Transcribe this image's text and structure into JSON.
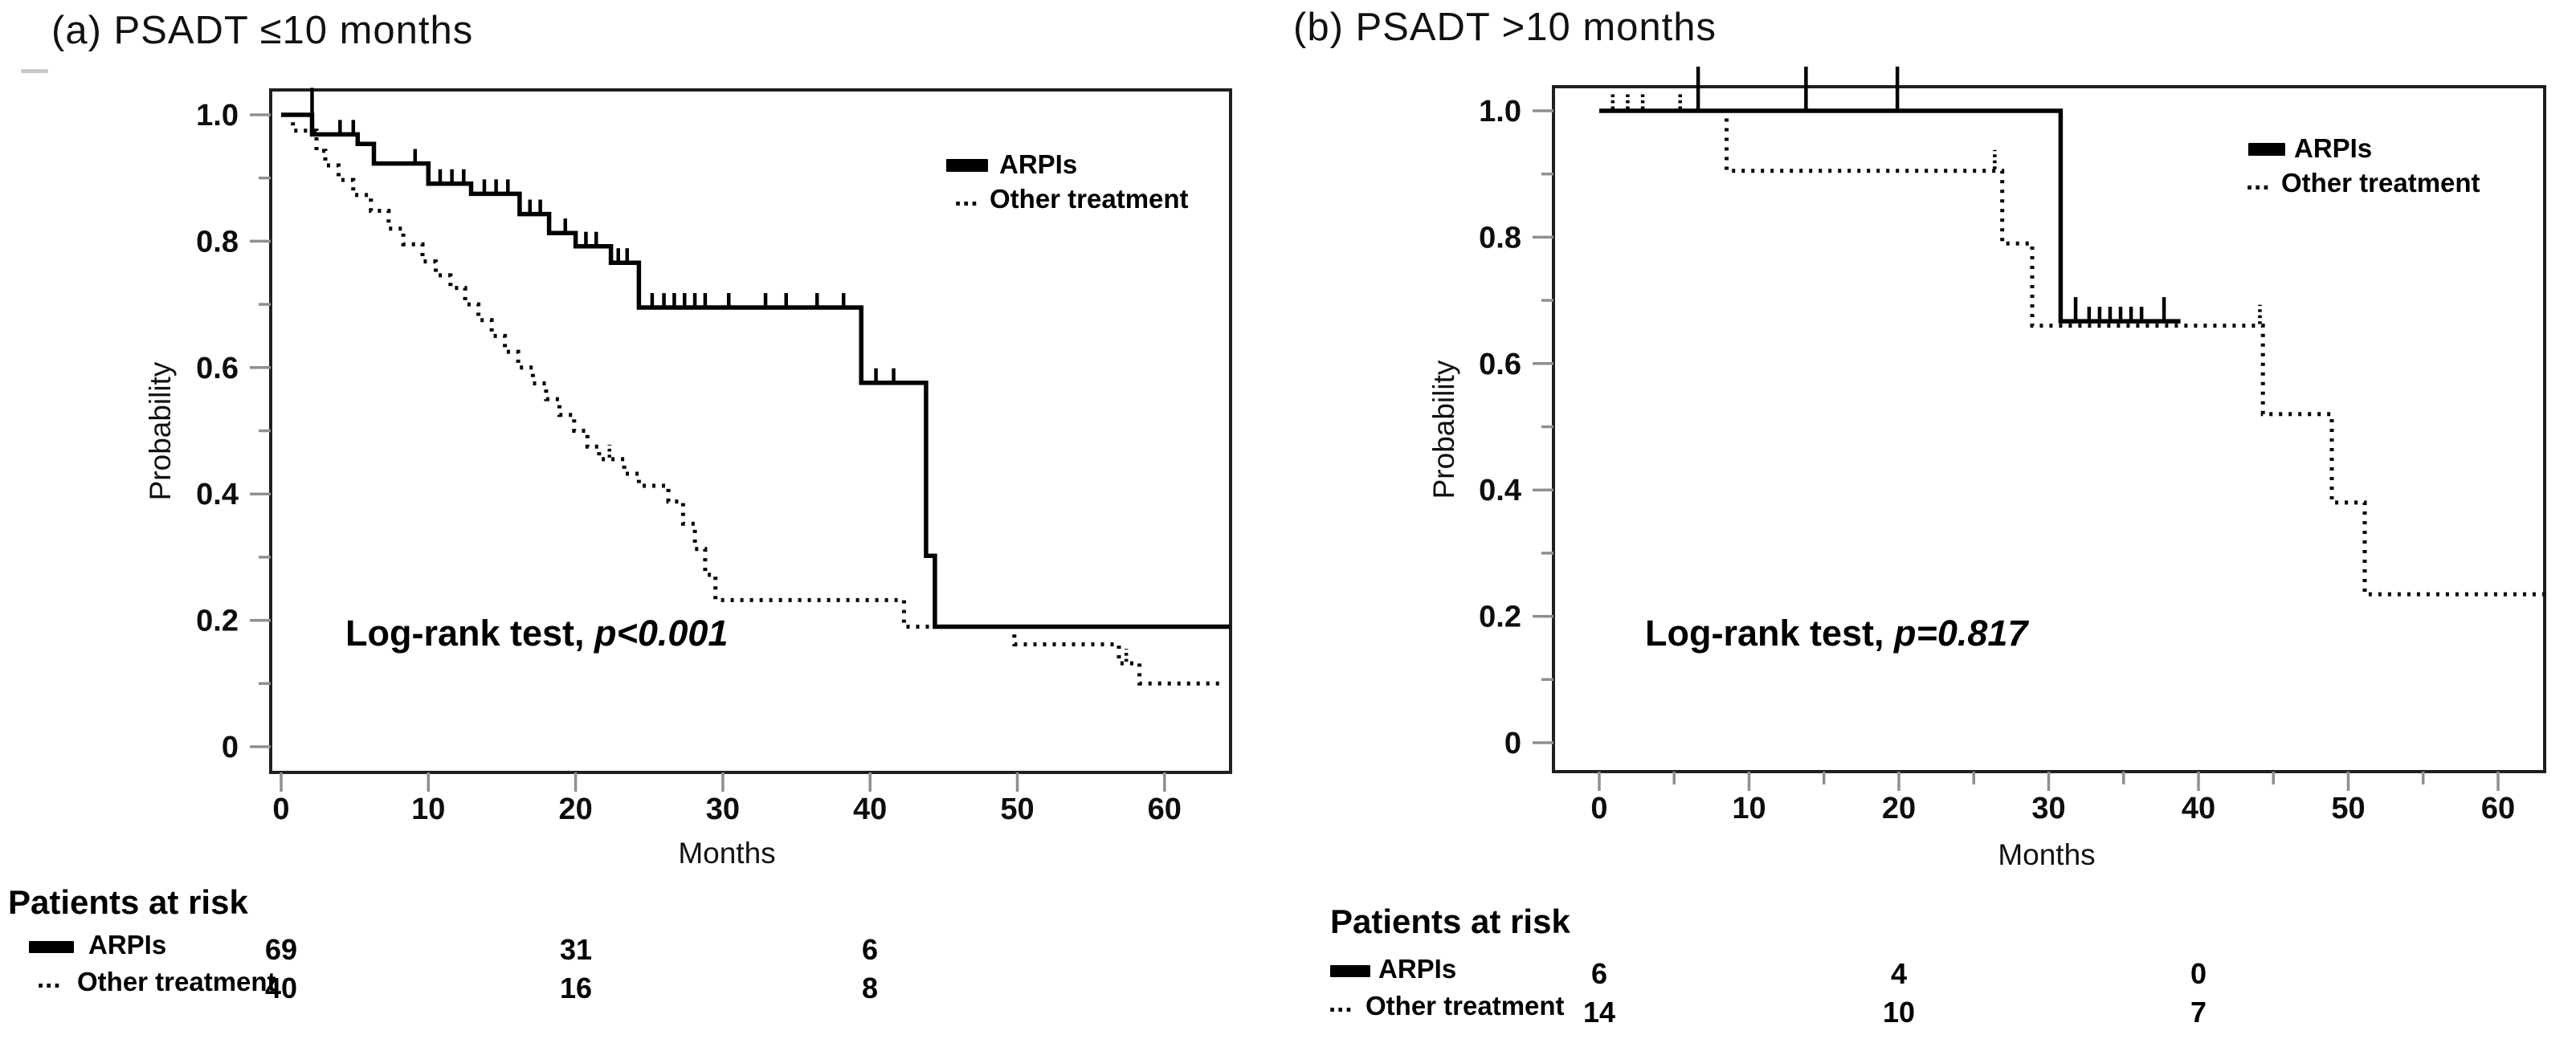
{
  "figure": {
    "panels": [
      {
        "id": "a",
        "title": "(a) PSADT ≤10 months",
        "ylabel": "Probability",
        "xlabel": "Months",
        "logrank_prefix": "Log-rank test, ",
        "logrank_p": "p<0.001",
        "legend": {
          "arpis": "ARPIs",
          "dots_prefix": "...",
          "other": "Other treatment"
        },
        "at_risk": {
          "title": "Patients at risk",
          "rows": [
            {
              "label": "ARPIs",
              "values": [
                "69",
                "31",
                "6"
              ]
            },
            {
              "label": "Other treatment",
              "values": [
                "40",
                "16",
                "8"
              ]
            }
          ]
        }
      },
      {
        "id": "b",
        "title": "(b) PSADT >10 months",
        "ylabel": "Probability",
        "xlabel": "Months",
        "logrank_prefix": "Log-rank test, ",
        "logrank_p": "p=0.817",
        "legend": {
          "arpis": "ARPIs",
          "dots_prefix": "...",
          "other": "Other treatment"
        },
        "at_risk": {
          "title": "Patients at risk",
          "rows": [
            {
              "label": "ARPIs",
              "values": [
                "6",
                "4",
                "0"
              ]
            },
            {
              "label": "Other treatment",
              "values": [
                "14",
                "10",
                "7"
              ]
            }
          ]
        }
      }
    ]
  },
  "chart_data": [
    {
      "type": "line",
      "panel": "a",
      "subtype": "kaplan-meier-step",
      "title": "(a) PSADT ≤10 months",
      "xlabel": "Months",
      "ylabel": "Probability",
      "xlim": [
        0,
        65
      ],
      "ylim": [
        0,
        1.05
      ],
      "xticks": [
        0,
        10,
        20,
        30,
        40,
        50,
        60
      ],
      "yticks": [
        1.0,
        0.8,
        0.6,
        0.4,
        0.2,
        0
      ],
      "grid": false,
      "legend_position": "upper-right-inside",
      "annotation": "Log-rank test, p<0.001",
      "series": [
        {
          "name": "Other treatment",
          "style": "dotted",
          "steps": [
            [
              0,
              1.0
            ],
            [
              0.8,
              0.975
            ],
            [
              2.4,
              0.943
            ],
            [
              3,
              0.92
            ],
            [
              3.9,
              0.897
            ],
            [
              4.9,
              0.873
            ],
            [
              6.1,
              0.848
            ],
            [
              7.3,
              0.82
            ],
            [
              8.3,
              0.795
            ],
            [
              9.6,
              0.768
            ],
            [
              10.5,
              0.746
            ],
            [
              11.5,
              0.726
            ],
            [
              12.5,
              0.7
            ],
            [
              13.4,
              0.675
            ],
            [
              14.3,
              0.65
            ],
            [
              15.2,
              0.625
            ],
            [
              16.1,
              0.6
            ],
            [
              17.1,
              0.575
            ],
            [
              18,
              0.55
            ],
            [
              18.9,
              0.525
            ],
            [
              19.9,
              0.5
            ],
            [
              20.8,
              0.475
            ],
            [
              21.6,
              0.455
            ],
            [
              23.3,
              0.432
            ],
            [
              24.3,
              0.413
            ],
            [
              26.3,
              0.388
            ],
            [
              27.3,
              0.353
            ],
            [
              28.1,
              0.313
            ],
            [
              28.8,
              0.272
            ],
            [
              29.5,
              0.232
            ],
            [
              42.3,
              0.19
            ],
            [
              49.8,
              0.162
            ],
            [
              56.9,
              0.132
            ],
            [
              58.3,
              0.1
            ],
            [
              64,
              0.1
            ]
          ],
          "censors": [
            [
              22.3,
              0.455
            ],
            [
              57.4,
              0.132
            ]
          ]
        },
        {
          "name": "ARPIs",
          "style": "solid",
          "steps": [
            [
              0,
              1.0
            ],
            [
              2.1,
              0.969
            ],
            [
              5.2,
              0.954
            ],
            [
              6.3,
              0.923
            ],
            [
              10,
              0.891
            ],
            [
              12.9,
              0.875
            ],
            [
              16.2,
              0.843
            ],
            [
              18.2,
              0.813
            ],
            [
              20,
              0.792
            ],
            [
              22.4,
              0.766
            ],
            [
              24.3,
              0.695
            ],
            [
              39.4,
              0.576
            ],
            [
              43.8,
              0.302
            ],
            [
              44.4,
              0.19
            ],
            [
              64.4,
              0.19
            ]
          ],
          "censors": [
            [
              2.1,
              0.969,
              58
            ],
            [
              4,
              0.969
            ],
            [
              4.9,
              0.969
            ],
            [
              9.1,
              0.923
            ],
            [
              10.8,
              0.891
            ],
            [
              11.6,
              0.891
            ],
            [
              12.4,
              0.891
            ],
            [
              13.8,
              0.875
            ],
            [
              14.6,
              0.875
            ],
            [
              15.4,
              0.875
            ],
            [
              16.9,
              0.843
            ],
            [
              17.6,
              0.843
            ],
            [
              19.3,
              0.813
            ],
            [
              20.7,
              0.792
            ],
            [
              21.4,
              0.792
            ],
            [
              22.9,
              0.766
            ],
            [
              23.5,
              0.766
            ],
            [
              25.2,
              0.695
            ],
            [
              26,
              0.695
            ],
            [
              26.7,
              0.695
            ],
            [
              27.4,
              0.695
            ],
            [
              28.1,
              0.695
            ],
            [
              28.8,
              0.695
            ],
            [
              30.4,
              0.695
            ],
            [
              32.9,
              0.695
            ],
            [
              34.3,
              0.695
            ],
            [
              36.4,
              0.695
            ],
            [
              38.2,
              0.695
            ],
            [
              40.4,
              0.576
            ],
            [
              41.6,
              0.576
            ]
          ]
        }
      ],
      "at_risk": {
        "times": [
          0,
          20,
          40
        ],
        "ARPIs": [
          69,
          31,
          6
        ],
        "Other treatment": [
          40,
          16,
          8
        ]
      }
    },
    {
      "type": "line",
      "panel": "b",
      "subtype": "kaplan-meier-step",
      "title": "(b) PSADT >10 months",
      "xlabel": "Months",
      "ylabel": "Probability",
      "xlim": [
        0,
        65
      ],
      "ylim": [
        0,
        1.05
      ],
      "xticks": [
        0,
        10,
        20,
        30,
        40,
        50,
        60
      ],
      "yticks": [
        1.0,
        0.8,
        0.6,
        0.4,
        0.2,
        0
      ],
      "grid": false,
      "legend_position": "upper-right-inside",
      "annotation": "Log-rank test, p=0.817",
      "series": [
        {
          "name": "Other treatment",
          "style": "dotted",
          "steps": [
            [
              0,
              1.0
            ],
            [
              8.5,
              0.905
            ],
            [
              26.9,
              0.79
            ],
            [
              28.9,
              0.66
            ],
            [
              44.3,
              0.52
            ],
            [
              48.9,
              0.38
            ],
            [
              51.1,
              0.235
            ],
            [
              63.1,
              0.235
            ]
          ],
          "censors": [
            [
              0.9,
              1.0,
              24
            ],
            [
              1.9,
              1.0,
              24
            ],
            [
              2.9,
              1.0,
              24
            ],
            [
              5.4,
              1.0,
              24
            ],
            [
              26.4,
              0.905,
              26
            ],
            [
              44.1,
              0.66,
              26
            ]
          ]
        },
        {
          "name": "ARPIs",
          "style": "solid",
          "steps": [
            [
              0,
              1.0
            ],
            [
              30.8,
              0.667
            ],
            [
              38.8,
              0.667
            ]
          ],
          "censors": [
            [
              6.6,
              1.0,
              55
            ],
            [
              13.8,
              1.0,
              55
            ],
            [
              19.9,
              1.0,
              55
            ],
            [
              31.8,
              0.667,
              30
            ],
            [
              32.7,
              0.667
            ],
            [
              33.4,
              0.667
            ],
            [
              34.1,
              0.667
            ],
            [
              34.8,
              0.667
            ],
            [
              35.5,
              0.667
            ],
            [
              36.2,
              0.667
            ],
            [
              37.7,
              0.667,
              30
            ]
          ]
        }
      ],
      "at_risk": {
        "times": [
          0,
          20,
          40
        ],
        "ARPIs": [
          6,
          4,
          0
        ],
        "Other treatment": [
          14,
          10,
          7
        ]
      }
    }
  ]
}
